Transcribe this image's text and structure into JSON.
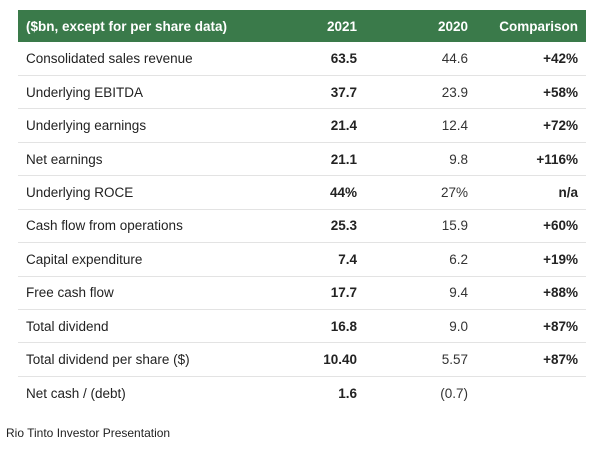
{
  "table": {
    "headers": {
      "label": "($bn, except for per share data)",
      "y2021": "2021",
      "y2020": "2020",
      "comparison": "Comparison"
    },
    "rows": [
      {
        "label": "Consolidated sales revenue",
        "y2021": "63.5",
        "y2020": "44.6",
        "comparison": "+42%"
      },
      {
        "label": "Underlying EBITDA",
        "y2021": "37.7",
        "y2020": "23.9",
        "comparison": "+58%"
      },
      {
        "label": "Underlying earnings",
        "y2021": "21.4",
        "y2020": "12.4",
        "comparison": "+72%"
      },
      {
        "label": "Net earnings",
        "y2021": "21.1",
        "y2020": "9.8",
        "comparison": "+116%"
      },
      {
        "label": "Underlying ROCE",
        "y2021": "44%",
        "y2020": "27%",
        "comparison": "n/a"
      },
      {
        "label": "Cash flow from operations",
        "y2021": "25.3",
        "y2020": "15.9",
        "comparison": "+60%"
      },
      {
        "label": "Capital expenditure",
        "y2021": "7.4",
        "y2020": "6.2",
        "comparison": "+19%"
      },
      {
        "label": "Free cash flow",
        "y2021": "17.7",
        "y2020": "9.4",
        "comparison": "+88%"
      },
      {
        "label": "Total dividend",
        "y2021": "16.8",
        "y2020": "9.0",
        "comparison": "+87%"
      },
      {
        "label": "Total dividend per share ($)",
        "y2021": "10.40",
        "y2020": "5.57",
        "comparison": "+87%"
      },
      {
        "label": "Net cash / (debt)",
        "y2021": "1.6",
        "y2020": "(0.7)",
        "comparison": ""
      }
    ],
    "header_color": "#3a7a4a"
  },
  "caption": "Rio Tinto Investor Presentation"
}
